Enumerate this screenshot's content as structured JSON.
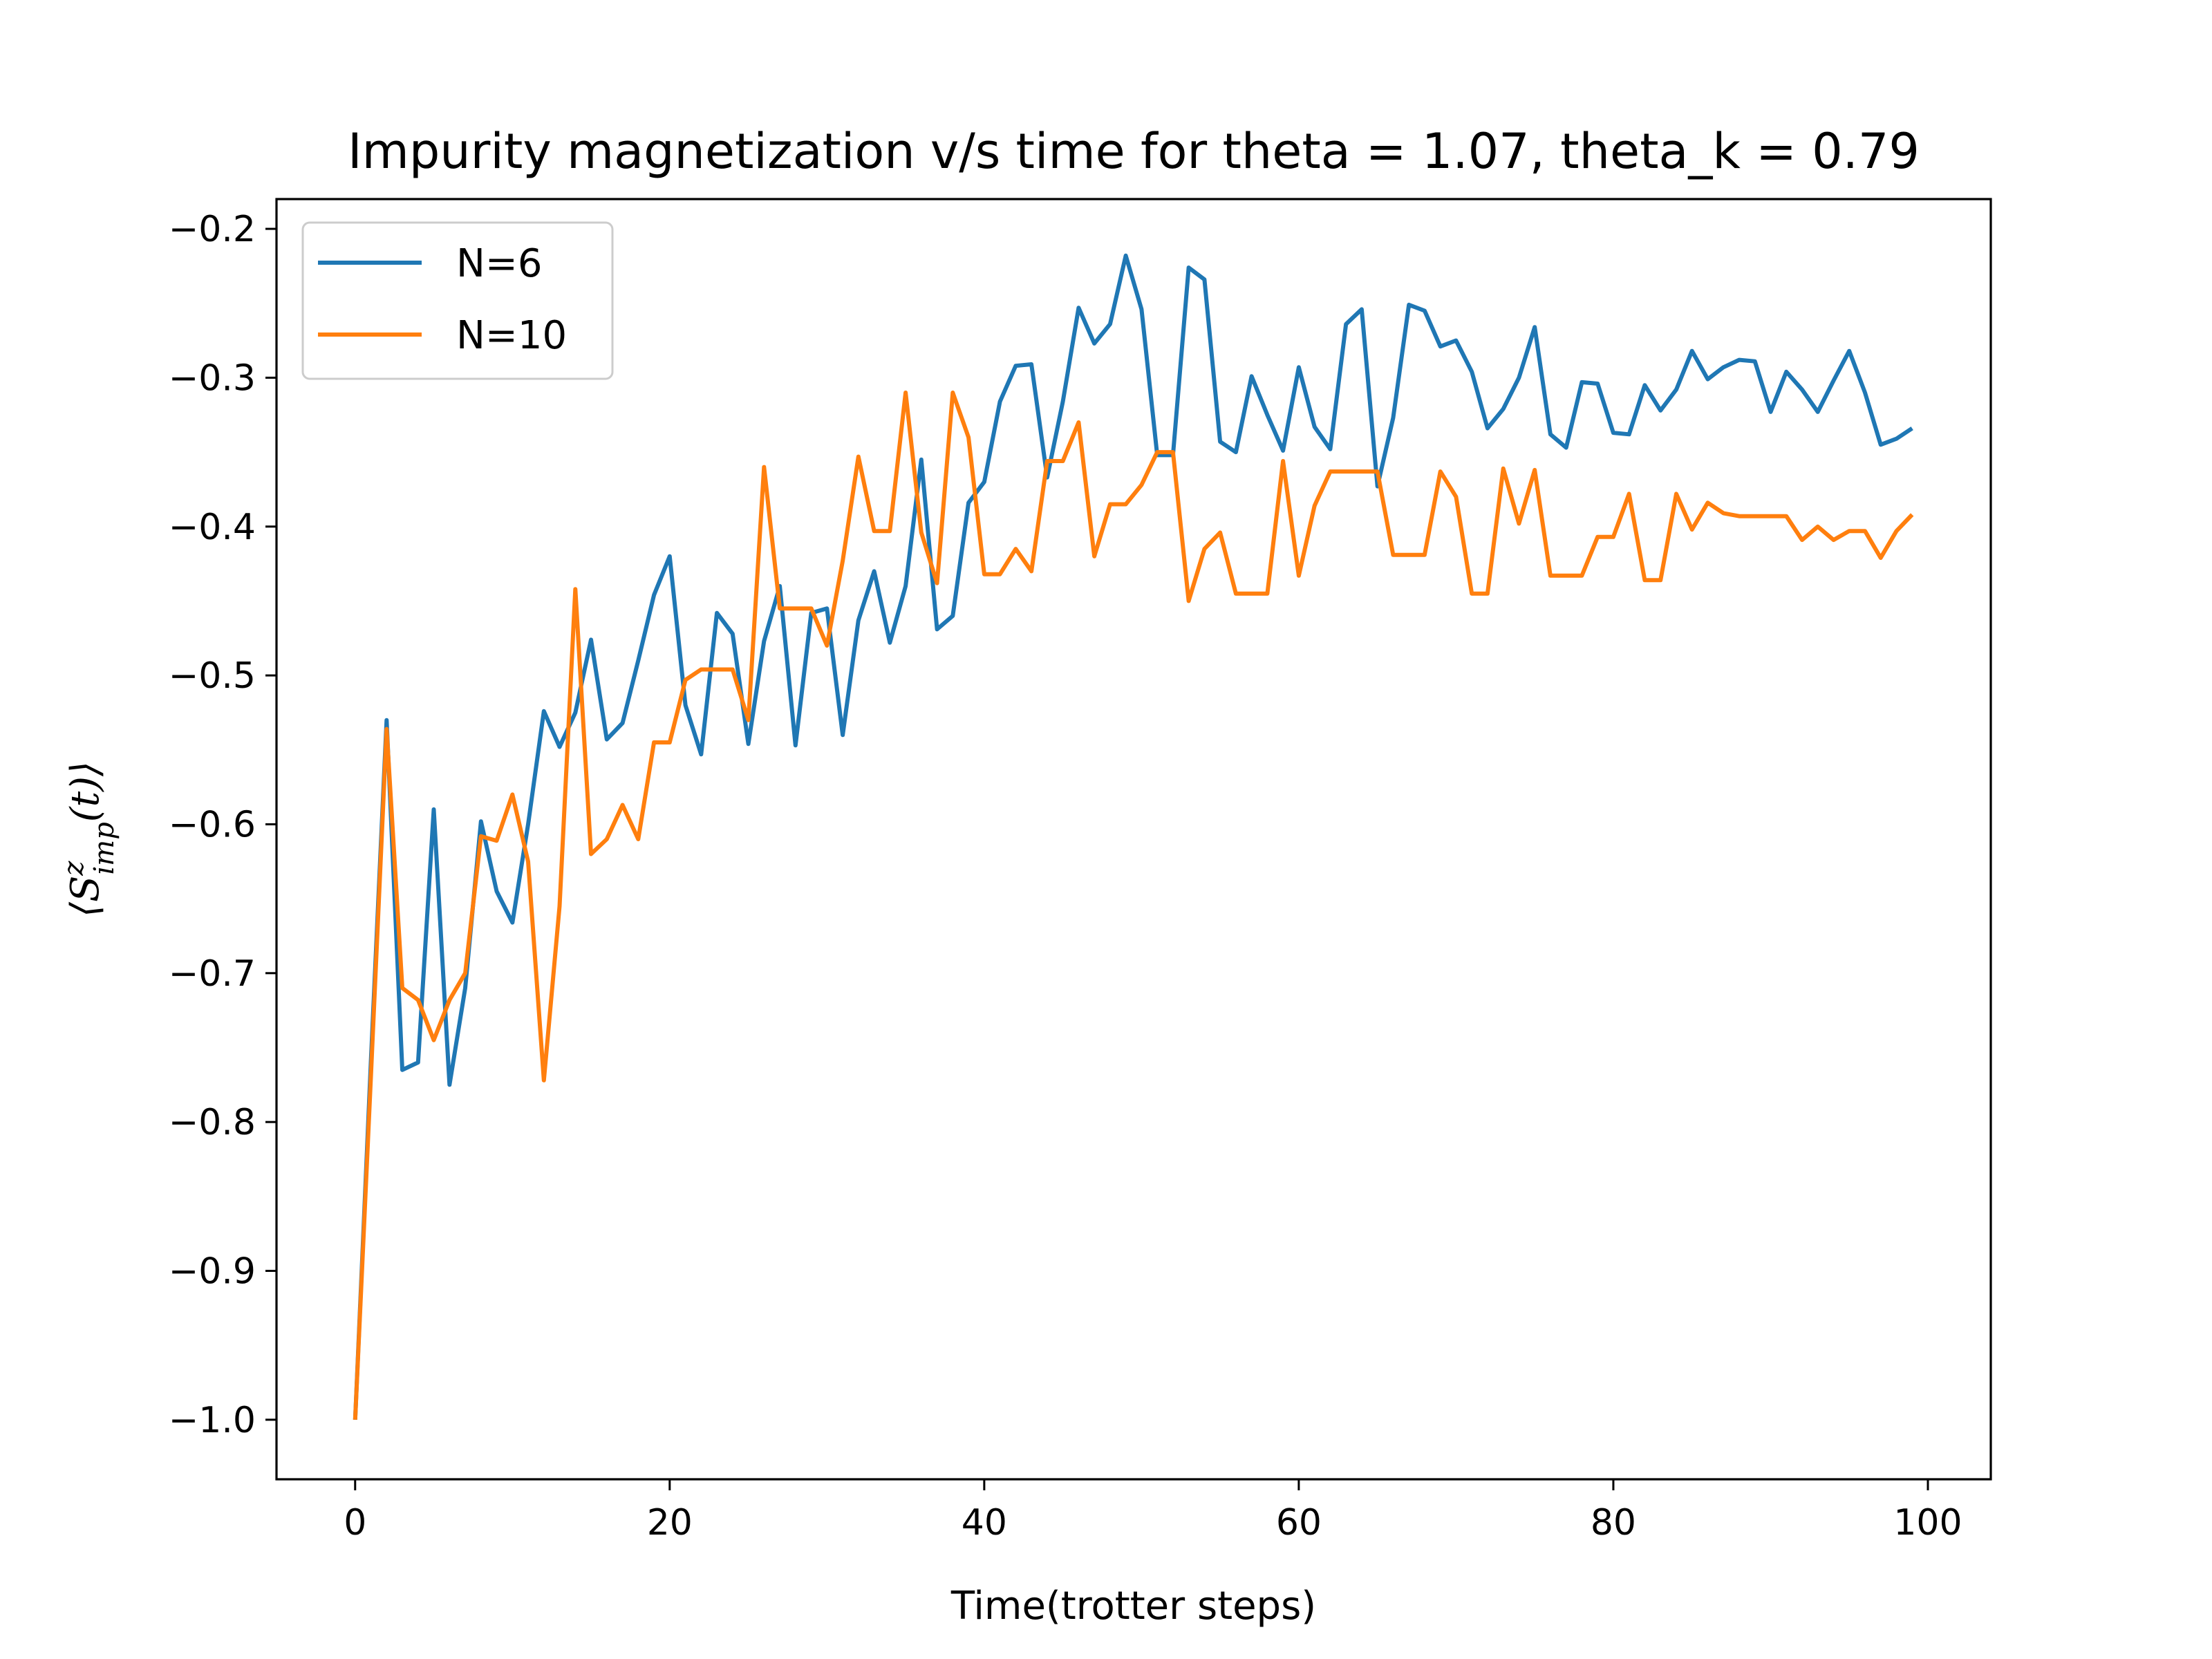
{
  "chart_data": {
    "type": "line",
    "title": "Impurity magnetization v/s time for theta = 1.07, theta_k = 0.79",
    "xlabel": "Time(trotter steps)",
    "ylabel": "⟨S^z_imp(t)⟩",
    "xlim": [
      -5,
      104
    ],
    "ylim": [
      -1.04,
      -0.18
    ],
    "xticks": [
      0,
      20,
      40,
      60,
      80,
      100
    ],
    "xtick_labels": [
      "0",
      "20",
      "40",
      "60",
      "80",
      "100"
    ],
    "yticks": [
      -1.0,
      -0.9,
      -0.8,
      -0.7,
      -0.6,
      -0.5,
      -0.4,
      -0.3,
      -0.2
    ],
    "ytick_labels": [
      "−1.0",
      "−0.9",
      "−0.8",
      "−0.7",
      "−0.6",
      "−0.5",
      "−0.4",
      "−0.3",
      "−0.2"
    ],
    "grid": false,
    "legend_position": "top-left",
    "series": [
      {
        "name": "N=6",
        "color": "#1f77b4",
        "x": [
          0,
          1,
          2,
          3,
          4,
          5,
          6,
          7,
          8,
          9,
          10,
          11,
          12,
          13,
          14,
          15,
          16,
          17,
          18,
          19,
          20,
          21,
          22,
          23,
          24,
          25,
          26,
          27,
          28,
          29,
          30,
          31,
          32,
          33,
          34,
          35,
          36,
          37,
          38,
          39,
          40,
          41,
          42,
          43,
          44,
          45,
          46,
          47,
          48,
          49,
          50,
          51,
          52,
          53,
          54,
          55,
          56,
          57,
          58,
          59,
          60,
          61,
          62,
          63,
          64,
          65,
          66,
          67,
          68,
          69,
          70,
          71,
          72,
          73,
          74,
          75,
          76,
          77,
          78,
          79,
          80,
          81,
          82,
          83,
          84,
          85,
          86,
          87,
          88,
          89,
          90,
          91,
          92,
          93,
          94,
          95,
          96,
          97,
          98,
          99
        ],
        "values": [
          -1.0,
          -0.76,
          -0.53,
          -0.765,
          -0.76,
          -0.59,
          -0.775,
          -0.71,
          -0.598,
          -0.645,
          -0.666,
          -0.6,
          -0.524,
          -0.548,
          -0.525,
          -0.476,
          -0.543,
          -0.532,
          -0.49,
          -0.446,
          -0.42,
          -0.52,
          -0.553,
          -0.458,
          -0.472,
          -0.546,
          -0.477,
          -0.44,
          -0.547,
          -0.458,
          -0.455,
          -0.54,
          -0.463,
          -0.43,
          -0.478,
          -0.44,
          -0.355,
          -0.469,
          -0.46,
          -0.384,
          -0.37,
          -0.316,
          -0.292,
          -0.291,
          -0.367,
          -0.316,
          -0.253,
          -0.277,
          -0.264,
          -0.218,
          -0.254,
          -0.352,
          -0.352,
          -0.226,
          -0.234,
          -0.343,
          -0.35,
          -0.299,
          -0.325,
          -0.349,
          -0.293,
          -0.333,
          -0.348,
          -0.264,
          -0.254,
          -0.373,
          -0.327,
          -0.251,
          -0.255,
          -0.279,
          -0.275,
          -0.296,
          -0.334,
          -0.321,
          -0.3,
          -0.266,
          -0.338,
          -0.347,
          -0.303,
          -0.304,
          -0.337,
          -0.338,
          -0.305,
          -0.322,
          -0.308,
          -0.282,
          -0.301,
          -0.293,
          -0.288,
          -0.289,
          -0.323,
          -0.296,
          -0.308,
          -0.323,
          -0.302,
          -0.282,
          -0.31,
          -0.345,
          -0.341,
          -0.334
        ]
      },
      {
        "name": "N=10",
        "color": "#ff7f0e",
        "x": [
          0,
          1,
          2,
          3,
          4,
          5,
          6,
          7,
          8,
          9,
          10,
          11,
          12,
          13,
          14,
          15,
          16,
          17,
          18,
          19,
          20,
          21,
          22,
          23,
          24,
          25,
          26,
          27,
          28,
          29,
          30,
          31,
          32,
          33,
          34,
          35,
          36,
          37,
          38,
          39,
          40,
          41,
          42,
          43,
          44,
          45,
          46,
          47,
          48,
          49,
          50,
          51,
          52,
          53,
          54,
          55,
          56,
          57,
          58,
          59,
          60,
          61,
          62,
          63,
          64,
          65,
          66,
          67,
          68,
          69,
          70,
          71,
          72,
          73,
          74,
          75,
          76,
          77,
          78,
          79,
          80,
          81,
          82,
          83,
          84,
          85,
          86,
          87,
          88,
          89,
          90,
          91,
          92,
          93,
          94,
          95,
          96,
          97,
          98,
          99
        ],
        "values": [
          -1.0,
          -0.77,
          -0.536,
          -0.71,
          -0.718,
          -0.745,
          -0.718,
          -0.7,
          -0.608,
          -0.611,
          -0.58,
          -0.625,
          -0.772,
          -0.655,
          -0.442,
          -0.62,
          -0.61,
          -0.587,
          -0.61,
          -0.545,
          -0.545,
          -0.503,
          -0.496,
          -0.496,
          -0.496,
          -0.53,
          -0.36,
          -0.455,
          -0.455,
          -0.455,
          -0.48,
          -0.423,
          -0.353,
          -0.403,
          -0.403,
          -0.31,
          -0.404,
          -0.438,
          -0.31,
          -0.34,
          -0.432,
          -0.432,
          -0.415,
          -0.43,
          -0.356,
          -0.356,
          -0.33,
          -0.42,
          -0.385,
          -0.385,
          -0.372,
          -0.35,
          -0.35,
          -0.45,
          -0.415,
          -0.404,
          -0.445,
          -0.445,
          -0.445,
          -0.356,
          -0.433,
          -0.386,
          -0.363,
          -0.363,
          -0.363,
          -0.363,
          -0.419,
          -0.419,
          -0.419,
          -0.363,
          -0.38,
          -0.445,
          -0.445,
          -0.361,
          -0.398,
          -0.362,
          -0.433,
          -0.433,
          -0.433,
          -0.407,
          -0.407,
          -0.378,
          -0.436,
          -0.436,
          -0.378,
          -0.402,
          -0.384,
          -0.391,
          -0.393,
          -0.393,
          -0.393,
          -0.393,
          -0.409,
          -0.4,
          -0.409,
          -0.403,
          -0.403,
          -0.421,
          -0.403,
          -0.392
        ]
      }
    ]
  }
}
